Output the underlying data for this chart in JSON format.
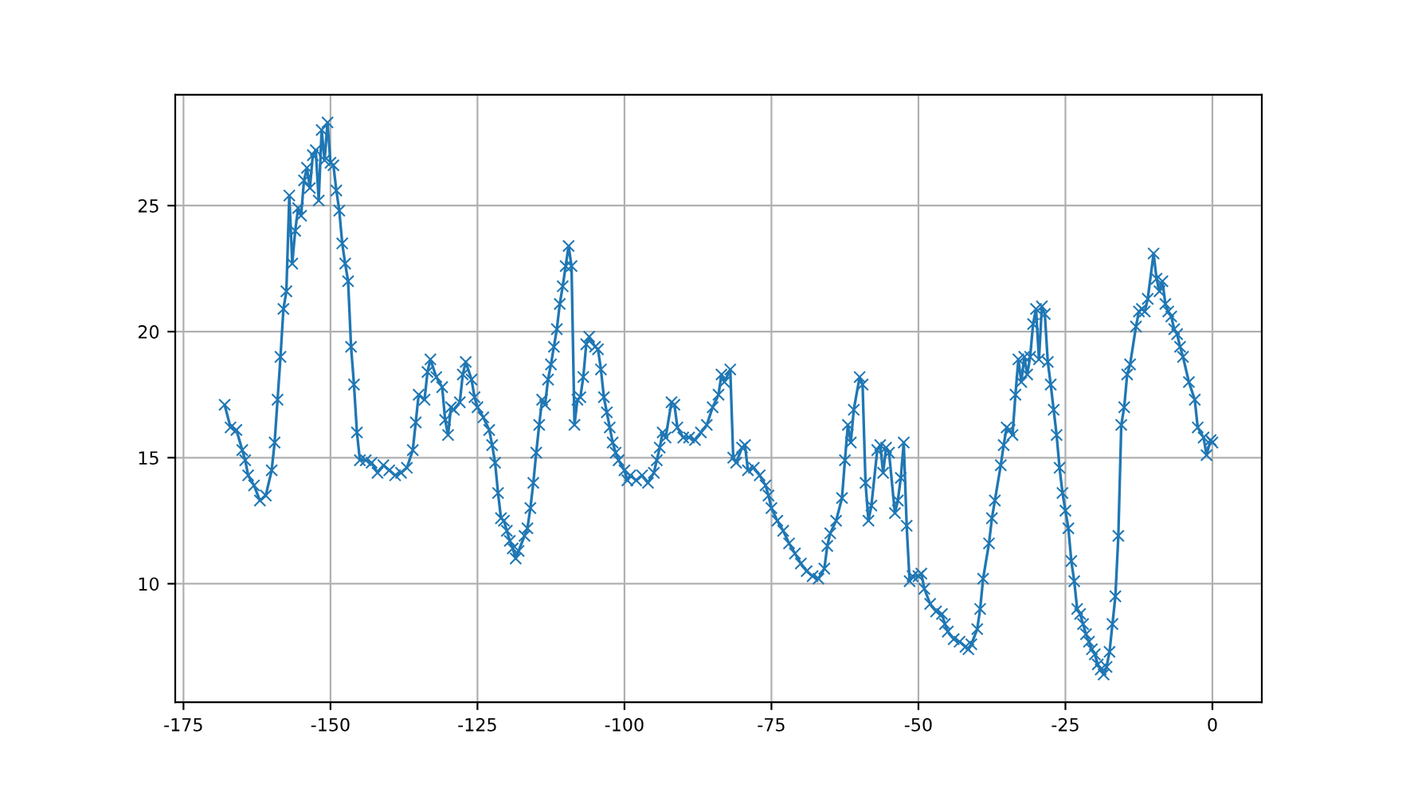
{
  "chart_data": {
    "type": "line",
    "x": [
      -168,
      -167,
      -166,
      -165,
      -164.5,
      -164,
      -163,
      -162,
      -161,
      -160,
      -159.5,
      -159,
      -158.5,
      -158,
      -157.5,
      -157,
      -156.5,
      -156,
      -155.5,
      -155,
      -154.5,
      -154,
      -153.5,
      -153,
      -152.5,
      -152,
      -151.5,
      -151,
      -150.5,
      -150,
      -149.5,
      -149,
      -148.5,
      -148,
      -147.5,
      -147,
      -146.5,
      -146,
      -145.5,
      -145,
      -144,
      -143,
      -142,
      -141,
      -140,
      -139,
      -138,
      -137,
      -136,
      -135.5,
      -135,
      -134,
      -133.5,
      -133,
      -132,
      -131,
      -130.5,
      -130,
      -129.5,
      -129,
      -128,
      -127.5,
      -127,
      -126,
      -125.5,
      -125,
      -124,
      -123,
      -122.5,
      -122,
      -121.5,
      -121,
      -120.5,
      -120,
      -119.5,
      -119,
      -118.5,
      -118,
      -117,
      -116.5,
      -116,
      -115.5,
      -115,
      -114.5,
      -114,
      -113.5,
      -113,
      -112.5,
      -112,
      -111.5,
      -111,
      -110.5,
      -110,
      -109.5,
      -109,
      -108.5,
      -108,
      -107.5,
      -107,
      -106.5,
      -106,
      -105,
      -104.5,
      -104,
      -103.5,
      -103,
      -102.5,
      -102,
      -101.5,
      -101,
      -100,
      -99.5,
      -99,
      -98,
      -97,
      -96,
      -95,
      -94.5,
      -94,
      -93.5,
      -93,
      -92,
      -91.5,
      -91,
      -90,
      -89,
      -88,
      -87,
      -86,
      -85,
      -84,
      -83.5,
      -83,
      -82,
      -81.5,
      -81,
      -80,
      -79.5,
      -79,
      -78,
      -77,
      -76,
      -75.5,
      -75,
      -74,
      -73,
      -72,
      -71,
      -70,
      -69,
      -68,
      -67,
      -66,
      -65.5,
      -65,
      -64,
      -63,
      -62.5,
      -62,
      -61.5,
      -61,
      -60,
      -59.5,
      -59,
      -58.5,
      -58,
      -57,
      -56.5,
      -56,
      -55.5,
      -55,
      -54,
      -53.5,
      -53,
      -52.5,
      -52,
      -51.5,
      -51,
      -50,
      -49.5,
      -49,
      -48,
      -47,
      -46,
      -45.5,
      -45,
      -44,
      -43,
      -42,
      -41.5,
      -41,
      -40,
      -39.5,
      -39,
      -38,
      -37.5,
      -37,
      -36,
      -35.5,
      -35,
      -34.5,
      -34,
      -33.5,
      -33,
      -32.5,
      -32,
      -31.5,
      -31,
      -30.5,
      -30,
      -29.5,
      -29,
      -28.5,
      -28,
      -27.5,
      -27,
      -26.5,
      -26,
      -25.5,
      -25,
      -24.5,
      -24,
      -23.5,
      -23,
      -22.5,
      -22,
      -21.5,
      -21,
      -20.5,
      -20,
      -19.5,
      -19,
      -18.5,
      -18,
      -17.5,
      -17,
      -16.5,
      -16,
      -15.5,
      -15,
      -14.5,
      -14,
      -13,
      -12.5,
      -12,
      -11.5,
      -11,
      -10,
      -9.5,
      -9,
      -8.5,
      -8,
      -7.5,
      -7,
      -6.5,
      -6,
      -5.5,
      -5,
      -4,
      -3,
      -2.5,
      -1.5,
      -1,
      -0.3,
      0
    ],
    "series": [
      {
        "color": "#1f77b4",
        "values": [
          17.1,
          16.2,
          16.1,
          15.3,
          14.9,
          14.3,
          13.9,
          13.3,
          13.5,
          14.5,
          15.6,
          17.3,
          19.0,
          20.9,
          21.6,
          25.4,
          22.7,
          24.0,
          24.9,
          24.6,
          26.0,
          26.5,
          25.7,
          27.0,
          27.2,
          25.2,
          28.0,
          26.8,
          28.3,
          26.7,
          26.6,
          25.6,
          24.8,
          23.5,
          22.7,
          22.0,
          19.4,
          17.9,
          16.0,
          14.9,
          14.9,
          14.8,
          14.4,
          14.7,
          14.5,
          14.3,
          14.4,
          14.6,
          15.3,
          16.4,
          17.5,
          17.3,
          18.4,
          18.9,
          18.2,
          17.8,
          16.5,
          15.9,
          17.0,
          16.9,
          17.2,
          18.3,
          18.8,
          18.1,
          17.4,
          17.0,
          16.6,
          16.1,
          15.5,
          14.8,
          13.6,
          12.6,
          12.5,
          12.1,
          11.7,
          11.4,
          11.0,
          11.3,
          11.9,
          12.2,
          13.0,
          14.0,
          15.2,
          16.3,
          17.3,
          17.1,
          18.1,
          18.7,
          19.4,
          20.1,
          21.1,
          21.8,
          22.6,
          23.4,
          22.6,
          16.3,
          17.3,
          17.4,
          18.2,
          19.5,
          19.8,
          19.4,
          19.3,
          18.5,
          17.4,
          16.8,
          16.2,
          15.6,
          15.2,
          14.9,
          14.5,
          14.1,
          14.3,
          14.1,
          14.3,
          14.0,
          14.4,
          14.9,
          15.4,
          16.0,
          15.8,
          17.2,
          17.1,
          16.2,
          15.8,
          15.8,
          15.7,
          16.0,
          16.3,
          17.0,
          17.5,
          18.3,
          18.0,
          18.5,
          15.0,
          14.8,
          15.4,
          15.5,
          14.5,
          14.6,
          14.3,
          13.9,
          13.5,
          13.0,
          12.5,
          12.1,
          11.6,
          11.2,
          10.8,
          10.5,
          10.3,
          10.2,
          10.6,
          11.5,
          12.0,
          12.5,
          13.4,
          14.9,
          16.3,
          15.6,
          16.9,
          18.2,
          17.9,
          14.0,
          12.5,
          13.1,
          15.3,
          15.5,
          14.4,
          15.4,
          15.2,
          12.8,
          13.3,
          14.2,
          15.6,
          12.3,
          10.1,
          10.3,
          10.3,
          10.4,
          9.8,
          9.2,
          8.9,
          8.8,
          8.4,
          8.1,
          7.8,
          7.7,
          7.5,
          7.4,
          7.6,
          8.2,
          9.0,
          10.2,
          11.6,
          12.6,
          13.3,
          14.7,
          15.5,
          16.2,
          16.1,
          15.9,
          17.5,
          18.9,
          18.0,
          19.0,
          18.3,
          19.0,
          20.3,
          20.9,
          18.9,
          21.0,
          20.7,
          18.8,
          17.9,
          16.9,
          15.9,
          14.6,
          13.6,
          12.9,
          12.2,
          10.9,
          10.1,
          9.0,
          8.8,
          8.4,
          8.0,
          7.7,
          7.4,
          7.2,
          6.8,
          6.6,
          6.4,
          6.7,
          7.3,
          8.4,
          9.5,
          11.9,
          16.3,
          17.0,
          18.3,
          18.7,
          20.2,
          20.8,
          20.9,
          20.8,
          21.3,
          23.1,
          22.1,
          21.6,
          22.0,
          21.1,
          20.8,
          20.6,
          20.1,
          19.9,
          19.4,
          19.0,
          18.0,
          17.3,
          16.2,
          15.8,
          15.1,
          15.7,
          15.6
        ]
      }
    ],
    "xlim": [
      -176.4,
      8.4
    ],
    "ylim": [
      5.3,
      29.4
    ],
    "xticks": [
      -175,
      -150,
      -125,
      -100,
      -75,
      -50,
      -25,
      0
    ],
    "yticks": [
      10,
      15,
      20,
      25
    ],
    "grid": true,
    "marker": "cross",
    "line_style": "solid"
  }
}
